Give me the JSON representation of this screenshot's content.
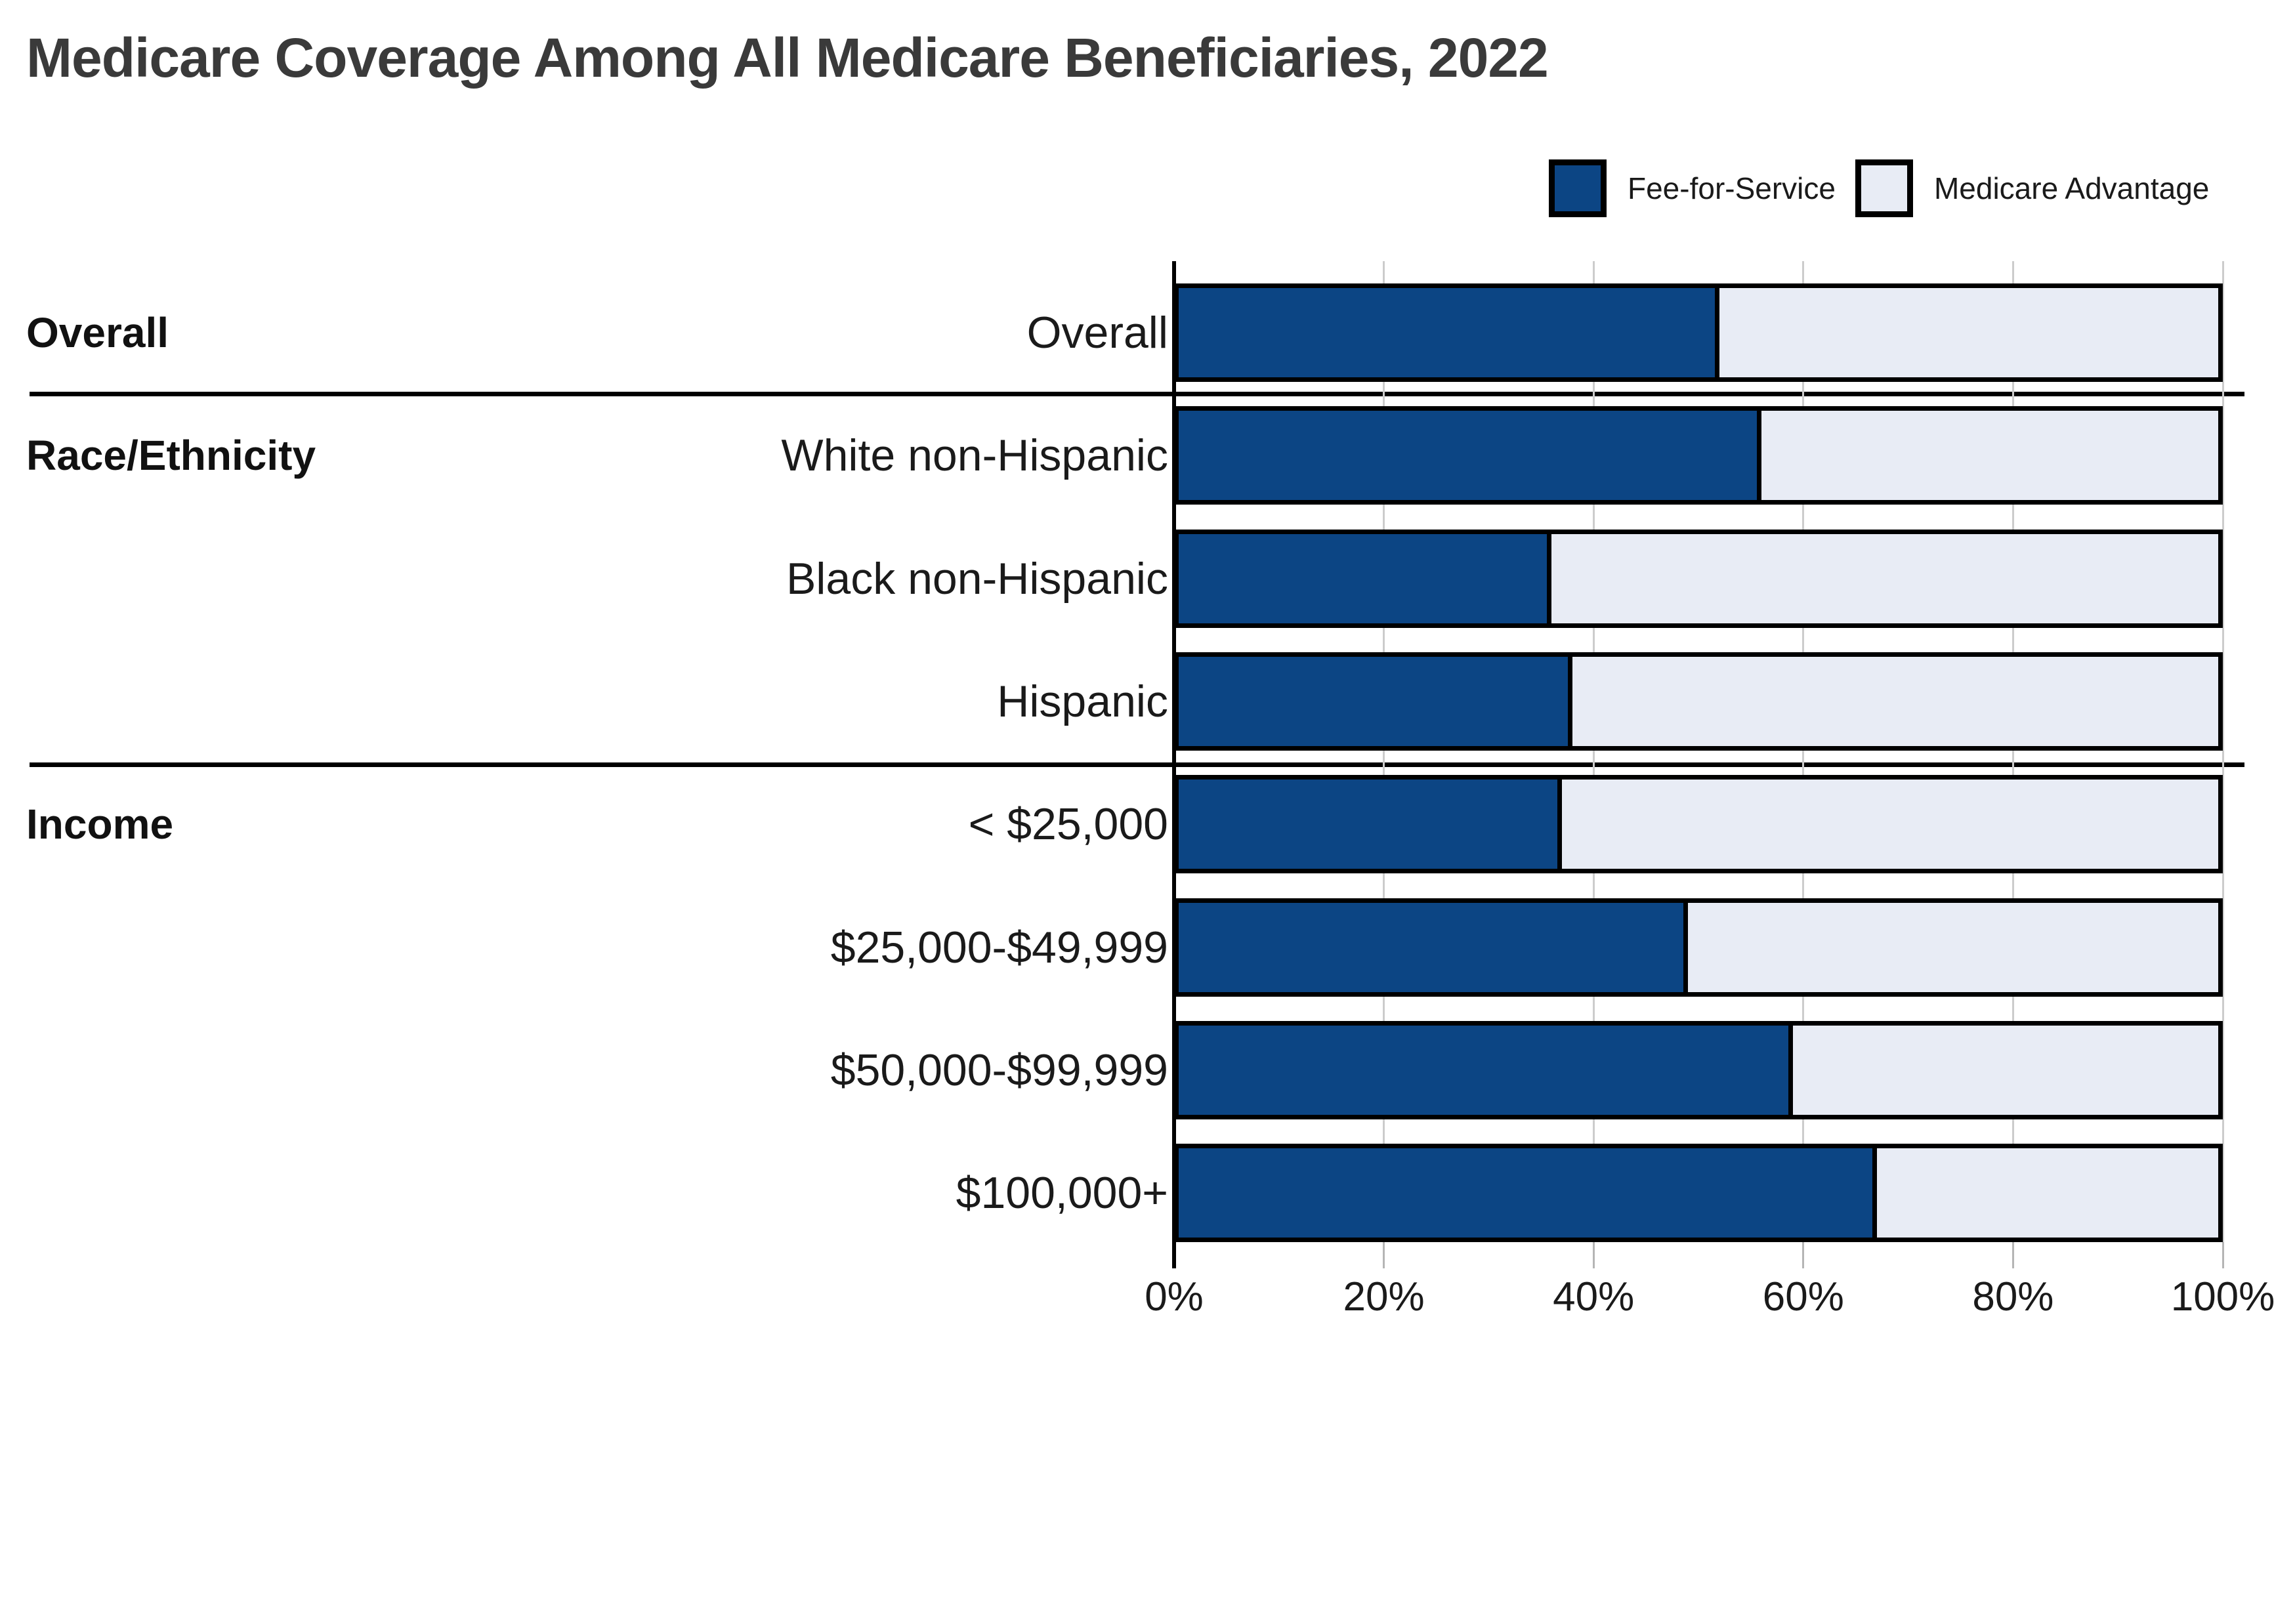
{
  "title": "Medicare Coverage Among All Medicare Beneficiaries, 2022",
  "legend": [
    {
      "label": "Fee-for-Service",
      "color": "#0c4584"
    },
    {
      "label": "Medicare Advantage",
      "color": "#e8ecf5"
    }
  ],
  "chart_data": {
    "type": "bar",
    "orientation": "horizontal",
    "stacked": true,
    "units": "percent",
    "title": "Medicare Coverage Among All Medicare Beneficiaries, 2022",
    "categories": [
      "Overall",
      "White non-Hispanic",
      "Black non-Hispanic",
      "Hispanic",
      "< $25,000",
      "$25,000-$49,999",
      "$50,000-$99,999",
      "$100,000+"
    ],
    "groups": [
      {
        "label": "Overall",
        "categories": [
          "Overall"
        ]
      },
      {
        "label": "Race/Ethnicity",
        "categories": [
          "White non-Hispanic",
          "Black non-Hispanic",
          "Hispanic"
        ]
      },
      {
        "label": "Income",
        "categories": [
          "< $25,000",
          "$25,000-$49,999",
          "$50,000-$99,999",
          "$100,000+"
        ]
      }
    ],
    "series": [
      {
        "name": "Fee-for-Service",
        "color": "#0c4584",
        "values": [
          52,
          56,
          36,
          38,
          37,
          49,
          59,
          67
        ]
      },
      {
        "name": "Medicare Advantage",
        "color": "#e8ecf5",
        "values": [
          48,
          44,
          64,
          62,
          63,
          51,
          41,
          33
        ]
      }
    ],
    "x_axis": {
      "min": 0,
      "max": 100,
      "ticks": [
        "0%",
        "20%",
        "40%",
        "60%",
        "80%",
        "100%"
      ]
    },
    "grid": true,
    "legend_position": "top-right",
    "bar_border_color": "#000000",
    "gridline_color": "#cccccc"
  }
}
